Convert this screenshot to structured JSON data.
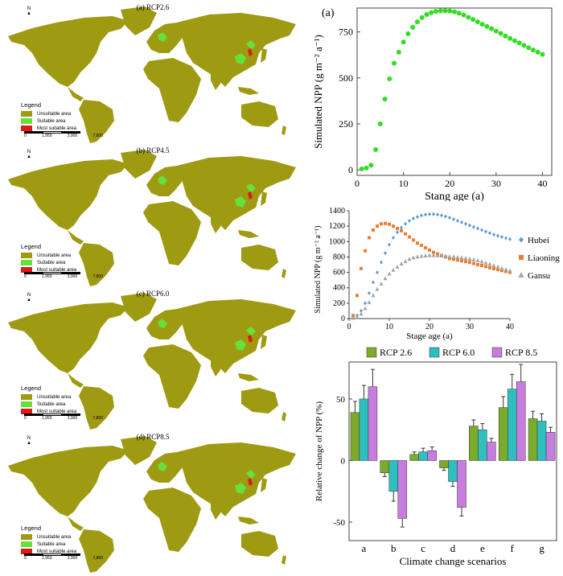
{
  "maps": [
    {
      "title": "(a) RCP2.6"
    },
    {
      "title": "(b) RCP4.5"
    },
    {
      "title": "(c) RCP6.0"
    },
    {
      "title": "(d) RCP8.5"
    }
  ],
  "map_legend": {
    "title": "Legend",
    "items": [
      "Unsuitable area",
      "Suitable area",
      "Most suitable area"
    ],
    "colors": [
      "#9e9a12",
      "#66e03a",
      "#e01a1a"
    ]
  },
  "scale_bar": {
    "labels": [
      "0",
      "1,950",
      "3,900",
      "7,800"
    ],
    "unit": "Km"
  },
  "north_label": "N",
  "chart_data": [
    {
      "type": "scatter",
      "panel_label": "(a)",
      "xlabel": "Stang age (a)",
      "ylabel": "Simulated NPP (g m⁻² a⁻¹)",
      "xlim": [
        0,
        42
      ],
      "ylim": [
        -30,
        880
      ],
      "xticks": [
        0,
        10,
        20,
        30,
        40
      ],
      "yticks": [
        0,
        250,
        500,
        750
      ],
      "color": "#33dd22",
      "x": [
        1,
        2,
        3,
        4,
        5,
        6,
        7,
        8,
        9,
        10,
        11,
        12,
        13,
        14,
        15,
        16,
        17,
        18,
        19,
        20,
        21,
        22,
        23,
        24,
        25,
        26,
        27,
        28,
        29,
        30,
        31,
        32,
        33,
        34,
        35,
        36,
        37,
        38,
        39,
        40
      ],
      "y": [
        5,
        10,
        25,
        110,
        250,
        385,
        495,
        580,
        640,
        695,
        740,
        775,
        805,
        828,
        845,
        855,
        862,
        865,
        865,
        864,
        860,
        852,
        842,
        830,
        818,
        805,
        792,
        780,
        768,
        755,
        742,
        728,
        715,
        702,
        690,
        677,
        664,
        652,
        640,
        628
      ]
    },
    {
      "type": "scatter",
      "xlabel": "Stage age (a)",
      "ylabel": "Simulated NPP (g m⁻² a⁻¹)",
      "xlim": [
        0,
        40
      ],
      "ylim": [
        0,
        1400
      ],
      "xticks": [
        0,
        10,
        20,
        30,
        40
      ],
      "yticks": [
        0,
        200,
        400,
        600,
        800,
        1000,
        1200,
        1400
      ],
      "x": [
        1,
        2,
        3,
        4,
        5,
        6,
        7,
        8,
        9,
        10,
        11,
        12,
        13,
        14,
        15,
        16,
        17,
        18,
        19,
        20,
        21,
        22,
        23,
        24,
        25,
        26,
        27,
        28,
        29,
        30,
        31,
        32,
        33,
        34,
        35,
        36,
        37,
        38,
        39,
        40
      ],
      "series": [
        {
          "name": "Hubei",
          "marker": "diamond",
          "color": "#5b9bd5",
          "values": [
            10,
            40,
            100,
            200,
            330,
            470,
            600,
            730,
            850,
            960,
            1050,
            1120,
            1180,
            1230,
            1270,
            1300,
            1320,
            1340,
            1350,
            1355,
            1355,
            1350,
            1340,
            1325,
            1310,
            1290,
            1270,
            1250,
            1230,
            1210,
            1190,
            1170,
            1150,
            1130,
            1110,
            1090,
            1075,
            1060,
            1045,
            1030
          ]
        },
        {
          "name": "Liaoning",
          "marker": "square",
          "color": "#ed7d31",
          "values": [
            40,
            300,
            650,
            880,
            1050,
            1150,
            1200,
            1230,
            1235,
            1225,
            1200,
            1170,
            1140,
            1100,
            1060,
            1020,
            980,
            950,
            920,
            890,
            860,
            840,
            820,
            800,
            780,
            770,
            760,
            750,
            740,
            730,
            715,
            700,
            690,
            675,
            660,
            648,
            636,
            624,
            612,
            600
          ]
        },
        {
          "name": "Gansu",
          "marker": "triangle",
          "color": "#a5a5a5",
          "values": [
            5,
            20,
            60,
            130,
            210,
            300,
            380,
            450,
            520,
            580,
            630,
            670,
            710,
            740,
            770,
            790,
            800,
            810,
            815,
            820,
            820,
            818,
            815,
            810,
            805,
            800,
            795,
            790,
            783,
            775,
            765,
            752,
            738,
            722,
            705,
            688,
            670,
            652,
            636,
            620
          ]
        }
      ]
    },
    {
      "type": "bar",
      "xlabel": "Climate change scenarios",
      "ylabel": "Relative change of NPP (%)",
      "categories": [
        "a",
        "b",
        "c",
        "d",
        "e",
        "f",
        "g"
      ],
      "ylim": [
        -65,
        80
      ],
      "yticks": [
        -50,
        0,
        50
      ],
      "series": [
        {
          "name": "RCP 2.6",
          "color": "#7cab2c",
          "values": [
            39,
            -10,
            5,
            -6,
            28,
            43,
            34
          ],
          "errors": [
            9,
            3,
            2,
            2,
            5,
            9,
            6
          ]
        },
        {
          "name": "RCP 6.0",
          "color": "#2fbfbf",
          "values": [
            50,
            -25,
            7,
            -17,
            25,
            58,
            32
          ],
          "errors": [
            11,
            8,
            3,
            4,
            5,
            12,
            6
          ]
        },
        {
          "name": "RCP 8.5",
          "color": "#c77ddd",
          "values": [
            60,
            -47,
            8,
            -38,
            15,
            64,
            23
          ],
          "errors": [
            14,
            7,
            3,
            7,
            3,
            14,
            4
          ]
        }
      ]
    }
  ]
}
